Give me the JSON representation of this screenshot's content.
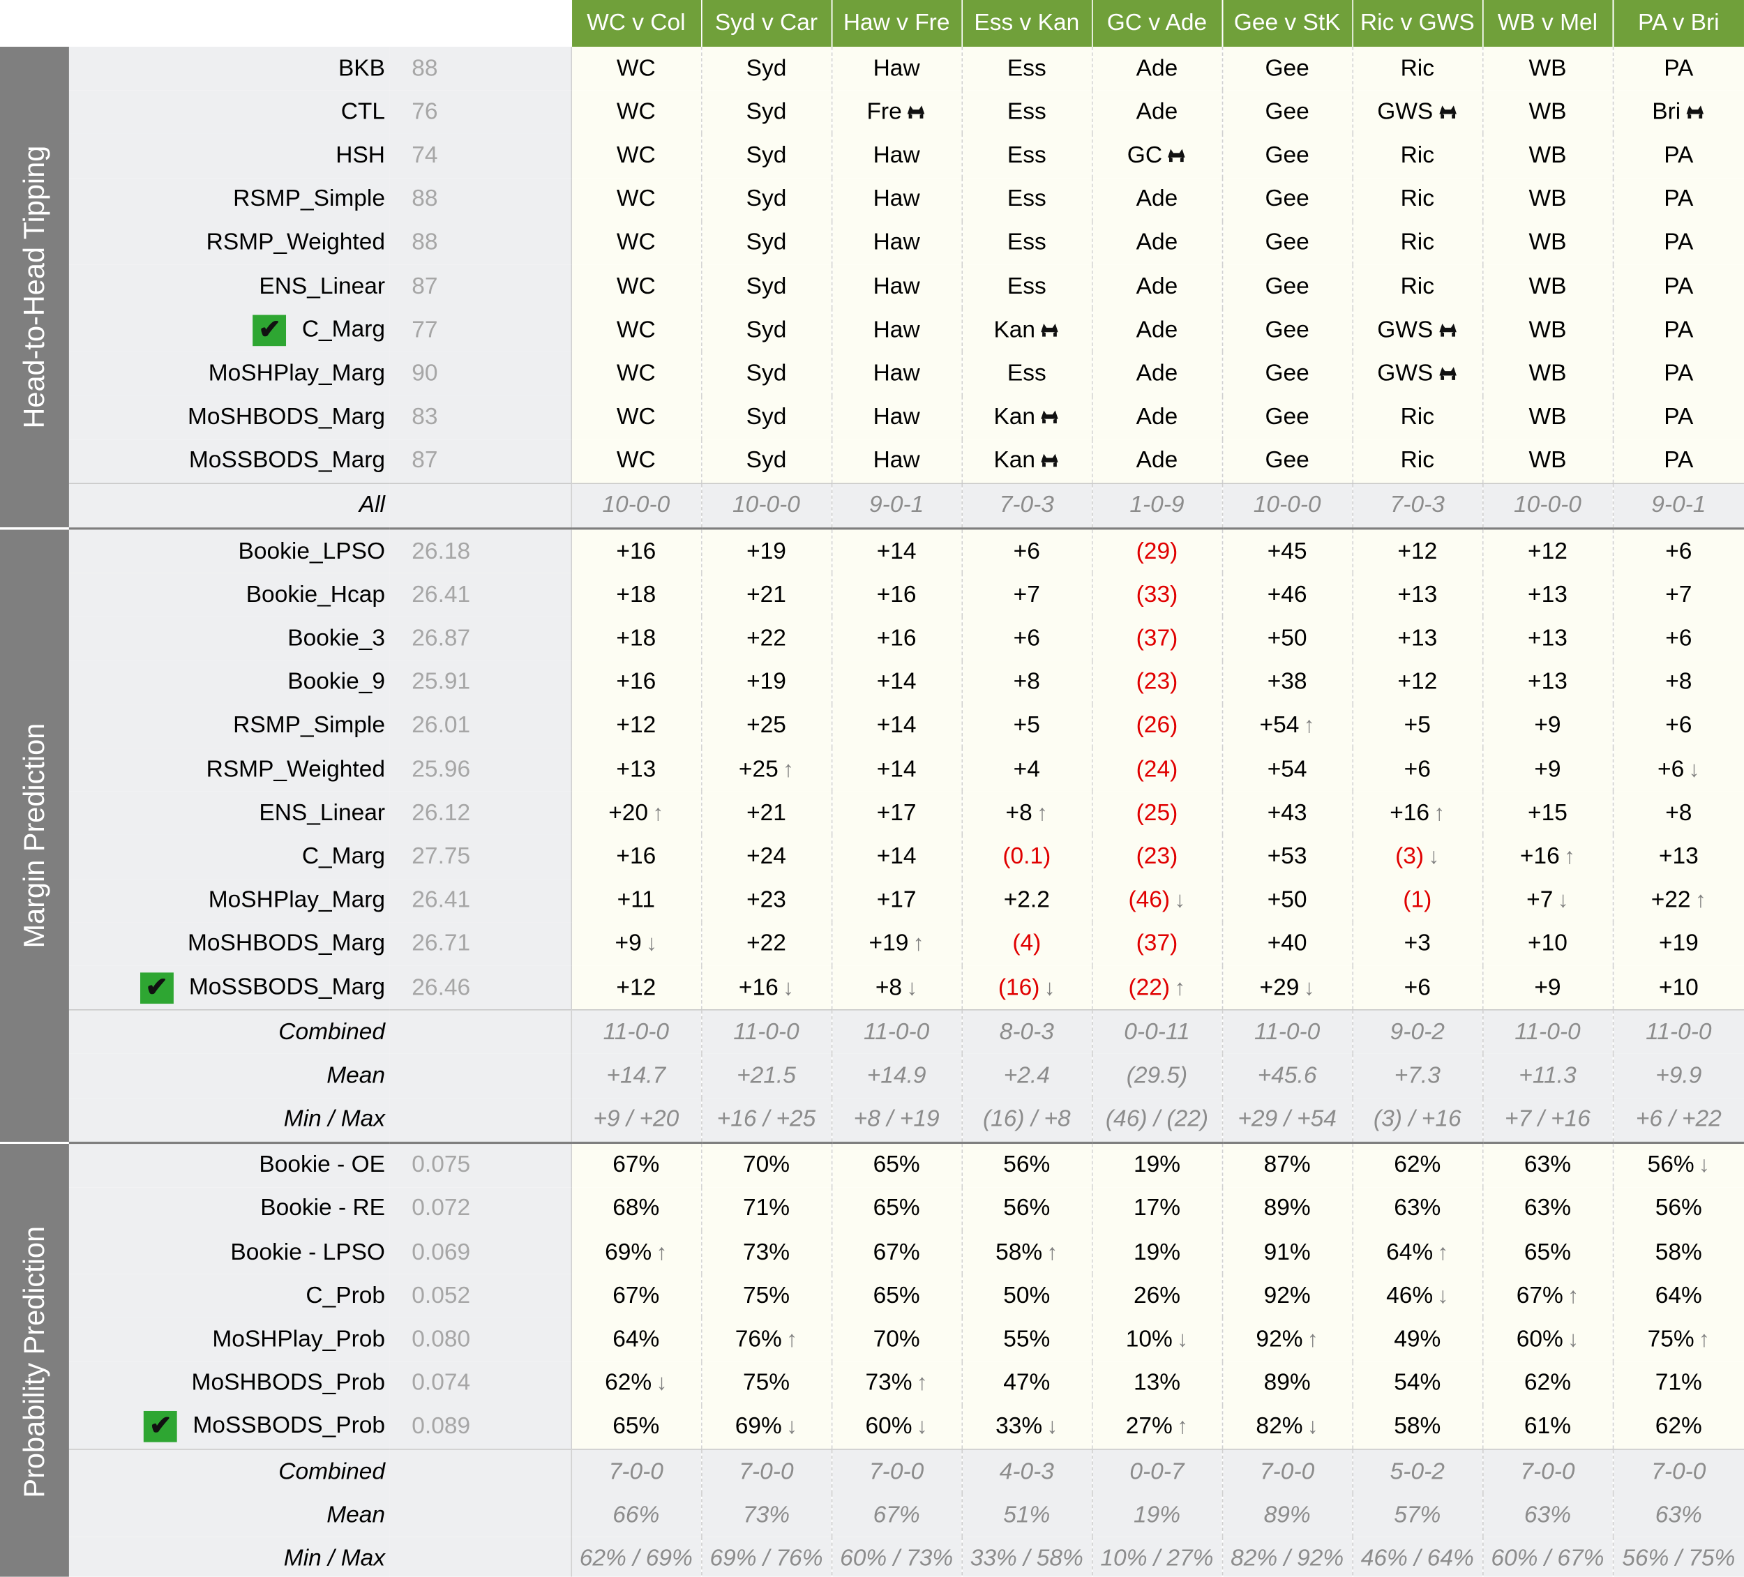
{
  "games": [
    "WC v Col",
    "Syd v Car",
    "Haw v Fre",
    "Ess v Kan",
    "GC v Ade",
    "Gee v StK",
    "Ric v GWS",
    "WB v Mel",
    "PA v Bri"
  ],
  "sections": {
    "h2h": {
      "title": "Head-to-Head Tipping",
      "rows": [
        {
          "name": "BKB",
          "score": "88",
          "tips": [
            "WC",
            "Syd",
            "Haw",
            "Ess",
            "Ade",
            "Gee",
            "Ric",
            "WB",
            "PA"
          ],
          "upsets": [
            0,
            0,
            0,
            0,
            0,
            0,
            0,
            0,
            0
          ]
        },
        {
          "name": "CTL",
          "score": "76",
          "tips": [
            "WC",
            "Syd",
            "Fre",
            "Ess",
            "Ade",
            "Gee",
            "GWS",
            "WB",
            "Bri"
          ],
          "upsets": [
            0,
            0,
            1,
            0,
            0,
            0,
            1,
            0,
            1
          ]
        },
        {
          "name": "HSH",
          "score": "74",
          "tips": [
            "WC",
            "Syd",
            "Haw",
            "Ess",
            "GC",
            "Gee",
            "Ric",
            "WB",
            "PA"
          ],
          "upsets": [
            0,
            0,
            0,
            0,
            1,
            0,
            0,
            0,
            0
          ]
        },
        {
          "name": "RSMP_Simple",
          "score": "88",
          "tips": [
            "WC",
            "Syd",
            "Haw",
            "Ess",
            "Ade",
            "Gee",
            "Ric",
            "WB",
            "PA"
          ],
          "upsets": [
            0,
            0,
            0,
            0,
            0,
            0,
            0,
            0,
            0
          ]
        },
        {
          "name": "RSMP_Weighted",
          "score": "88",
          "tips": [
            "WC",
            "Syd",
            "Haw",
            "Ess",
            "Ade",
            "Gee",
            "Ric",
            "WB",
            "PA"
          ],
          "upsets": [
            0,
            0,
            0,
            0,
            0,
            0,
            0,
            0,
            0
          ]
        },
        {
          "name": "ENS_Linear",
          "score": "87",
          "tips": [
            "WC",
            "Syd",
            "Haw",
            "Ess",
            "Ade",
            "Gee",
            "Ric",
            "WB",
            "PA"
          ],
          "upsets": [
            0,
            0,
            0,
            0,
            0,
            0,
            0,
            0,
            0
          ]
        },
        {
          "name": "C_Marg",
          "score": "77",
          "checked": true,
          "tips": [
            "WC",
            "Syd",
            "Haw",
            "Kan",
            "Ade",
            "Gee",
            "GWS",
            "WB",
            "PA"
          ],
          "upsets": [
            0,
            0,
            0,
            1,
            0,
            0,
            1,
            0,
            0
          ]
        },
        {
          "name": "MoSHPlay_Marg",
          "score": "90",
          "tips": [
            "WC",
            "Syd",
            "Haw",
            "Ess",
            "Ade",
            "Gee",
            "GWS",
            "WB",
            "PA"
          ],
          "upsets": [
            0,
            0,
            0,
            0,
            0,
            0,
            1,
            0,
            0
          ]
        },
        {
          "name": "MoSHBODS_Marg",
          "score": "83",
          "tips": [
            "WC",
            "Syd",
            "Haw",
            "Kan",
            "Ade",
            "Gee",
            "Ric",
            "WB",
            "PA"
          ],
          "upsets": [
            0,
            0,
            0,
            1,
            0,
            0,
            0,
            0,
            0
          ]
        },
        {
          "name": "MoSSBODS_Marg",
          "score": "87",
          "tips": [
            "WC",
            "Syd",
            "Haw",
            "Kan",
            "Ade",
            "Gee",
            "Ric",
            "WB",
            "PA"
          ],
          "upsets": [
            0,
            0,
            0,
            1,
            0,
            0,
            0,
            0,
            0
          ]
        }
      ],
      "summary": [
        {
          "label": "All",
          "values": [
            "10-0-0",
            "10-0-0",
            "9-0-1",
            "7-0-3",
            "1-0-9",
            "10-0-0",
            "7-0-3",
            "10-0-0",
            "9-0-1"
          ]
        }
      ]
    },
    "margin": {
      "title": "Margin Prediction",
      "rows": [
        {
          "name": "Bookie_LPSO",
          "score": "26.18",
          "values": [
            "+16",
            "+19",
            "+14",
            "+6",
            "(29)",
            "+45",
            "+12",
            "+12",
            "+6"
          ],
          "arrows": [
            "",
            "",
            "",
            "",
            "",
            "",
            "",
            "",
            ""
          ]
        },
        {
          "name": "Bookie_Hcap",
          "score": "26.41",
          "values": [
            "+18",
            "+21",
            "+16",
            "+7",
            "(33)",
            "+46",
            "+13",
            "+13",
            "+7"
          ],
          "arrows": [
            "",
            "",
            "",
            "",
            "",
            "",
            "",
            "",
            ""
          ]
        },
        {
          "name": "Bookie_3",
          "score": "26.87",
          "values": [
            "+18",
            "+22",
            "+16",
            "+6",
            "(37)",
            "+50",
            "+13",
            "+13",
            "+6"
          ],
          "arrows": [
            "",
            "",
            "",
            "",
            "",
            "",
            "",
            "",
            ""
          ]
        },
        {
          "name": "Bookie_9",
          "score": "25.91",
          "values": [
            "+16",
            "+19",
            "+14",
            "+8",
            "(23)",
            "+38",
            "+12",
            "+13",
            "+8"
          ],
          "arrows": [
            "",
            "",
            "",
            "",
            "",
            "",
            "",
            "",
            ""
          ]
        },
        {
          "name": "RSMP_Simple",
          "score": "26.01",
          "values": [
            "+12",
            "+25",
            "+14",
            "+5",
            "(26)",
            "+54",
            "+5",
            "+9",
            "+6"
          ],
          "arrows": [
            "",
            "",
            "",
            "",
            "",
            "up",
            "",
            "",
            ""
          ]
        },
        {
          "name": "RSMP_Weighted",
          "score": "25.96",
          "values": [
            "+13",
            "+25",
            "+14",
            "+4",
            "(24)",
            "+54",
            "+6",
            "+9",
            "+6"
          ],
          "arrows": [
            "",
            "up",
            "",
            "",
            "",
            "",
            "",
            "",
            "down"
          ]
        },
        {
          "name": "ENS_Linear",
          "score": "26.12",
          "values": [
            "+20",
            "+21",
            "+17",
            "+8",
            "(25)",
            "+43",
            "+16",
            "+15",
            "+8"
          ],
          "arrows": [
            "up",
            "",
            "",
            "up",
            "",
            "",
            "up",
            "",
            ""
          ]
        },
        {
          "name": "C_Marg",
          "score": "27.75",
          "values": [
            "+16",
            "+24",
            "+14",
            "(0.1)",
            "(23)",
            "+53",
            "(3)",
            "+16",
            "+13"
          ],
          "arrows": [
            "",
            "",
            "",
            "",
            "",
            "",
            "down",
            "up",
            ""
          ]
        },
        {
          "name": "MoSHPlay_Marg",
          "score": "26.41",
          "values": [
            "+11",
            "+23",
            "+17",
            "+2.2",
            "(46)",
            "+50",
            "(1)",
            "+7",
            "+22"
          ],
          "arrows": [
            "",
            "",
            "",
            "",
            "down",
            "",
            "",
            "down",
            "up"
          ]
        },
        {
          "name": "MoSHBODS_Marg",
          "score": "26.71",
          "values": [
            "+9",
            "+22",
            "+19",
            "(4)",
            "(37)",
            "+40",
            "+3",
            "+10",
            "+19"
          ],
          "arrows": [
            "down",
            "",
            "up",
            "",
            "",
            "",
            "",
            "",
            ""
          ]
        },
        {
          "name": "MoSSBODS_Marg",
          "score": "26.46",
          "checked": true,
          "values": [
            "+12",
            "+16",
            "+8",
            "(16)",
            "(22)",
            "+29",
            "+6",
            "+9",
            "+10"
          ],
          "arrows": [
            "",
            "down",
            "down",
            "down",
            "up",
            "down",
            "",
            "",
            ""
          ]
        }
      ],
      "summary": [
        {
          "label": "Combined",
          "values": [
            "11-0-0",
            "11-0-0",
            "11-0-0",
            "8-0-3",
            "0-0-11",
            "11-0-0",
            "9-0-2",
            "11-0-0",
            "11-0-0"
          ]
        },
        {
          "label": "Mean",
          "values": [
            "+14.7",
            "+21.5",
            "+14.9",
            "+2.4",
            "(29.5)",
            "+45.6",
            "+7.3",
            "+11.3",
            "+9.9"
          ]
        },
        {
          "label": "Min / Max",
          "values": [
            "+9 / +20",
            "+16 / +25",
            "+8 / +19",
            "(16) / +8",
            "(46) / (22)",
            "+29 / +54",
            "(3) / +16",
            "+7 / +16",
            "+6 / +22"
          ]
        }
      ]
    },
    "prob": {
      "title": "Probability Prediction",
      "rows": [
        {
          "name": "Bookie - OE",
          "score": "0.075",
          "values": [
            "67%",
            "70%",
            "65%",
            "56%",
            "19%",
            "87%",
            "62%",
            "63%",
            "56%"
          ],
          "arrows": [
            "",
            "",
            "",
            "",
            "",
            "",
            "",
            "",
            "down"
          ]
        },
        {
          "name": "Bookie - RE",
          "score": "0.072",
          "values": [
            "68%",
            "71%",
            "65%",
            "56%",
            "17%",
            "89%",
            "63%",
            "63%",
            "56%"
          ],
          "arrows": [
            "",
            "",
            "",
            "",
            "",
            "",
            "",
            "",
            ""
          ]
        },
        {
          "name": "Bookie - LPSO",
          "score": "0.069",
          "values": [
            "69%",
            "73%",
            "67%",
            "58%",
            "19%",
            "91%",
            "64%",
            "65%",
            "58%"
          ],
          "arrows": [
            "up",
            "",
            "",
            "up",
            "",
            "",
            "up",
            "",
            ""
          ]
        },
        {
          "name": "C_Prob",
          "score": "0.052",
          "values": [
            "67%",
            "75%",
            "65%",
            "50%",
            "26%",
            "92%",
            "46%",
            "67%",
            "64%"
          ],
          "arrows": [
            "",
            "",
            "",
            "",
            "",
            "",
            "down",
            "up",
            ""
          ]
        },
        {
          "name": "MoSHPlay_Prob",
          "score": "0.080",
          "values": [
            "64%",
            "76%",
            "70%",
            "55%",
            "10%",
            "92%",
            "49%",
            "60%",
            "75%"
          ],
          "arrows": [
            "",
            "up",
            "",
            "",
            "down",
            "up",
            "",
            "down",
            "up"
          ]
        },
        {
          "name": "MoSHBODS_Prob",
          "score": "0.074",
          "values": [
            "62%",
            "75%",
            "73%",
            "47%",
            "13%",
            "89%",
            "54%",
            "62%",
            "71%"
          ],
          "arrows": [
            "down",
            "",
            "up",
            "",
            "",
            "",
            "",
            "",
            ""
          ]
        },
        {
          "name": "MoSSBODS_Prob",
          "score": "0.089",
          "checked": true,
          "values": [
            "65%",
            "69%",
            "60%",
            "33%",
            "27%",
            "82%",
            "58%",
            "61%",
            "62%"
          ],
          "arrows": [
            "",
            "down",
            "down",
            "down",
            "up",
            "down",
            "",
            "",
            ""
          ]
        }
      ],
      "summary": [
        {
          "label": "Combined",
          "values": [
            "7-0-0",
            "7-0-0",
            "7-0-0",
            "4-0-3",
            "0-0-7",
            "7-0-0",
            "5-0-2",
            "7-0-0",
            "7-0-0"
          ]
        },
        {
          "label": "Mean",
          "values": [
            "66%",
            "73%",
            "67%",
            "51%",
            "19%",
            "89%",
            "57%",
            "63%",
            "63%"
          ]
        },
        {
          "label": "Min / Max",
          "values": [
            "62% / 69%",
            "69% / 76%",
            "60% / 73%",
            "33% / 58%",
            "10% / 27%",
            "82% / 92%",
            "46% / 64%",
            "60% / 67%",
            "56% / 75%"
          ]
        }
      ]
    }
  },
  "colors": {
    "header_green": "#70a03a",
    "negative_red": "#e00000",
    "arrow_gray": "#7f7f7f",
    "check_green": "#2ea632"
  },
  "icons": {
    "upset": "cat-icon",
    "up": "up-arrow-icon",
    "down": "down-arrow-icon",
    "checked": "checkmark-icon"
  }
}
